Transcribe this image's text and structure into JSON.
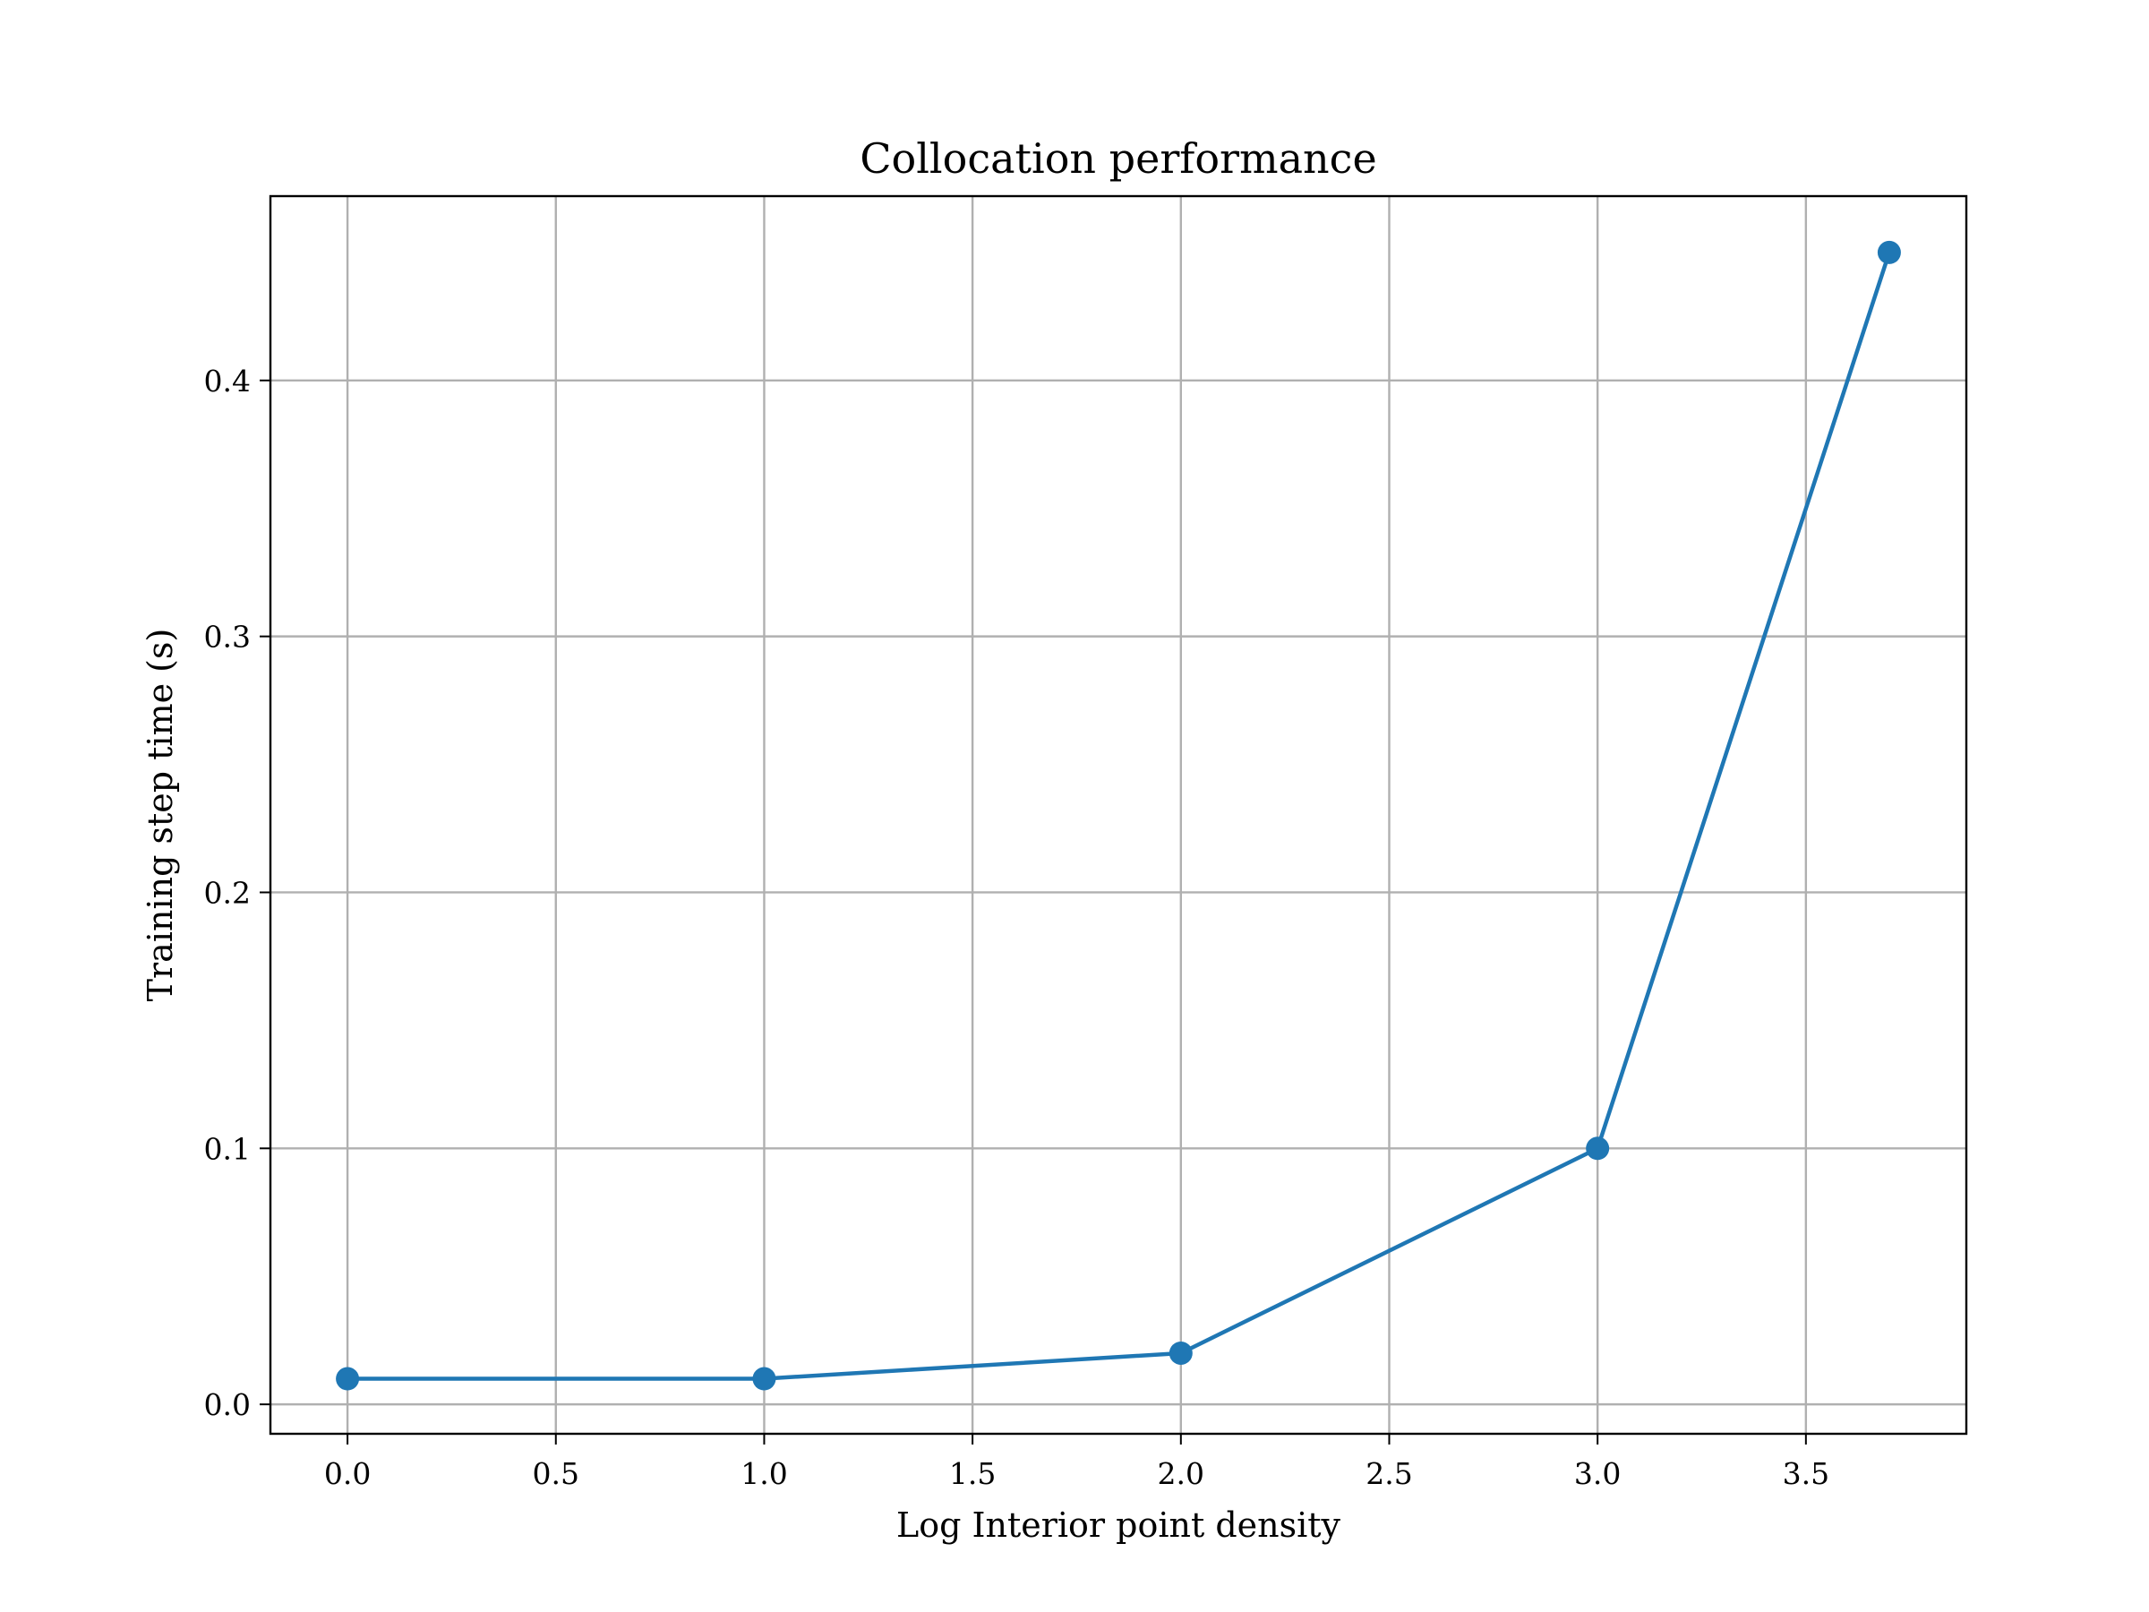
{
  "chart_data": {
    "type": "line",
    "title": "Collocation performance",
    "xlabel": "Log Interior point density",
    "ylabel": "Training step time (s)",
    "xlim": [
      -0.185,
      3.885
    ],
    "ylim": [
      -0.0115,
      0.472
    ],
    "xticks": [
      0.0,
      0.5,
      1.0,
      1.5,
      2.0,
      2.5,
      3.0,
      3.5
    ],
    "xtick_labels": [
      "0.0",
      "0.5",
      "1.0",
      "1.5",
      "2.0",
      "2.5",
      "3.0",
      "3.5"
    ],
    "yticks": [
      0.0,
      0.1,
      0.2,
      0.3,
      0.4
    ],
    "ytick_labels": [
      "0.0",
      "0.1",
      "0.2",
      "0.3",
      "0.4"
    ],
    "grid": true,
    "series": [
      {
        "x": [
          0.0,
          1.0,
          2.0,
          3.0,
          3.7
        ],
        "y": [
          0.01,
          0.01,
          0.02,
          0.1,
          0.45
        ],
        "color": "#1f77b4",
        "marker": "circle"
      }
    ]
  }
}
